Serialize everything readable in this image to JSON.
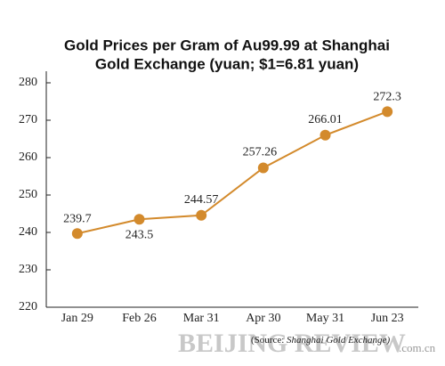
{
  "chart_data": {
    "type": "line",
    "title": [
      "Gold Prices per Gram of Au99.99 at Shanghai",
      "Gold Exchange (yuan; $1=6.81 yuan)"
    ],
    "categories": [
      "Jan 29",
      "Feb 26",
      "Mar 31",
      "Apr 30",
      "May 31",
      "Jun 23"
    ],
    "values": [
      239.7,
      243.5,
      244.57,
      257.26,
      266.01,
      272.3
    ],
    "color": "#d38a2c",
    "ylim": [
      220,
      280
    ],
    "yticks": [
      220,
      230,
      240,
      250,
      260,
      270,
      280
    ],
    "source_prefix": "(Source: ",
    "source": "Shanghai Gold Exchange)",
    "watermark": "BEIJING REVIEW",
    "watermark_suffix": ".com.cn"
  }
}
